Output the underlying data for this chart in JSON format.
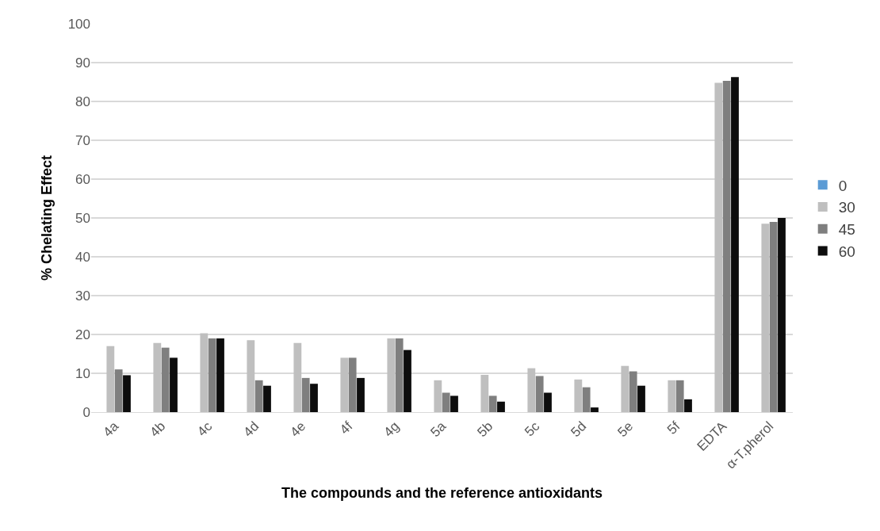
{
  "chart_data": {
    "type": "bar",
    "xlabel": "The compounds and the reference antioxidants",
    "ylabel": "% Chelating Effect",
    "categories": [
      "4a",
      "4b",
      "4c",
      "4d",
      "4e",
      "4f",
      "4g",
      "5a",
      "5b",
      "5c",
      "5d",
      "5e",
      "5f",
      "EDTA",
      "α-T.pherol"
    ],
    "series": [
      {
        "name": "0",
        "color": "#5b9bd5",
        "values": [
          0,
          0,
          0,
          0,
          0,
          0,
          0,
          0,
          0,
          0,
          0,
          0,
          0,
          0,
          0
        ]
      },
      {
        "name": "30",
        "color": "#bfbfbf",
        "values": [
          17,
          17.8,
          20.3,
          18.5,
          17.8,
          14,
          19,
          8.2,
          9.6,
          11.3,
          8.4,
          11.9,
          8.2,
          84.8,
          48.5
        ]
      },
      {
        "name": "45",
        "color": "#7f7f7f",
        "values": [
          11,
          16.6,
          19,
          8.2,
          8.8,
          14,
          19,
          5,
          4.2,
          9.3,
          6.4,
          10.5,
          8.2,
          85.3,
          49
        ]
      },
      {
        "name": "60",
        "color": "#0d0d0d",
        "values": [
          9.5,
          14,
          19,
          6.8,
          7.3,
          8.8,
          16,
          4.2,
          2.7,
          5,
          1.2,
          6.8,
          3.3,
          86.3,
          50
        ]
      }
    ],
    "ylim": [
      0,
      100
    ],
    "yticks": [
      0,
      10,
      20,
      30,
      40,
      50,
      60,
      70,
      80,
      90,
      100
    ],
    "grid": "y",
    "legend": "right"
  }
}
